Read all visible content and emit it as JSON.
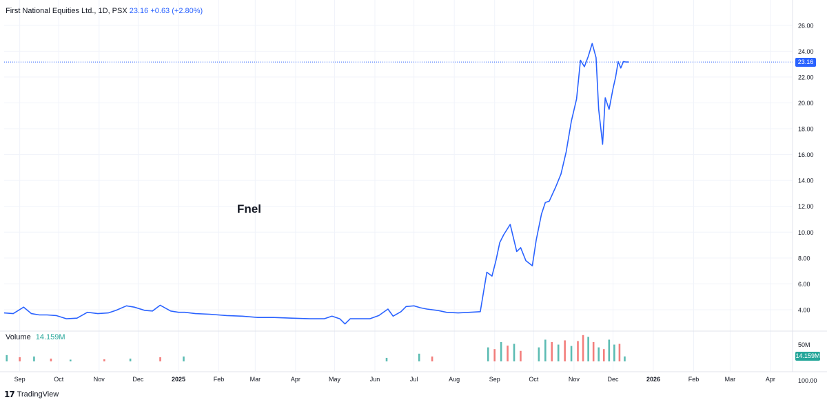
{
  "header": {
    "title": "First National Equities Ltd., 1D, PSX",
    "last": "23.16",
    "change": "+0.63 (+2.80%)"
  },
  "annotation": "Fnel",
  "volume_panel": {
    "label": "Volume",
    "value": "14.159M",
    "axis_ticks": [
      "50M",
      "100.00"
    ]
  },
  "branding": {
    "logo": "17",
    "name": "TradingView"
  },
  "colors": {
    "line": "#2962ff",
    "volume_up": "#26a69a",
    "volume_down": "#ef5350",
    "grid": "#f0f3fa",
    "text": "#131722"
  },
  "chart_data": {
    "type": "line",
    "symbol": "FNEL",
    "exchange": "PSX",
    "interval": "1D",
    "last_price": 23.16,
    "last_price_label": "23.16",
    "ylim": [
      2.4,
      27.0
    ],
    "y_ticks": [
      "4.00",
      "6.00",
      "8.00",
      "10.00",
      "12.00",
      "14.00",
      "16.00",
      "18.00",
      "20.00",
      "22.00",
      "24.00",
      "26.00"
    ],
    "x_ticks": [
      "Sep",
      "Oct",
      "Nov",
      "Dec",
      "2025",
      "Feb",
      "Mar",
      "Apr",
      "May",
      "Jun",
      "Jul",
      "Aug",
      "Sep",
      "Oct",
      "Nov",
      "Dec",
      "2026",
      "Feb",
      "Mar",
      "Apr"
    ],
    "x_tick_dates": [
      "2024-09-01",
      "2024-10-01",
      "2024-11-01",
      "2024-12-01",
      "2025-01-01",
      "2025-02-01",
      "2025-03-01",
      "2025-04-01",
      "2025-05-01",
      "2025-06-01",
      "2025-07-01",
      "2025-08-01",
      "2025-09-01",
      "2025-10-01",
      "2025-11-01",
      "2025-12-01",
      "2026-01-01",
      "2026-02-01",
      "2026-03-01",
      "2026-04-01"
    ],
    "x_range": [
      "2024-08-20",
      "2026-04-18"
    ],
    "grid": true,
    "series": [
      {
        "x": [
          "2024-08-20",
          "2024-08-27",
          "2024-09-04",
          "2024-09-10",
          "2024-09-16",
          "2024-09-22",
          "2024-09-29",
          "2024-10-07",
          "2024-10-15",
          "2024-10-23",
          "2024-10-31",
          "2024-11-08",
          "2024-11-14",
          "2024-11-22",
          "2024-11-28",
          "2024-12-06",
          "2024-12-12",
          "2024-12-18",
          "2024-12-26",
          "2025-01-01",
          "2025-01-06",
          "2025-01-14",
          "2025-01-25",
          "2025-02-07",
          "2025-02-19",
          "2025-03-03",
          "2025-03-15",
          "2025-03-29",
          "2025-04-12",
          "2025-04-23",
          "2025-04-29",
          "2025-05-05",
          "2025-05-09",
          "2025-05-13",
          "2025-05-20",
          "2025-05-28",
          "2025-06-04",
          "2025-06-11",
          "2025-06-15",
          "2025-06-21",
          "2025-06-25",
          "2025-07-01",
          "2025-07-06",
          "2025-07-11",
          "2025-07-19",
          "2025-07-26",
          "2025-08-04",
          "2025-08-13",
          "2025-08-21",
          "2025-08-26",
          "2025-08-30",
          "2025-09-02",
          "2025-09-05",
          "2025-09-08",
          "2025-09-13",
          "2025-09-18",
          "2025-09-21",
          "2025-09-25",
          "2025-09-30",
          "2025-10-03",
          "2025-10-07",
          "2025-10-10",
          "2025-10-13",
          "2025-10-18",
          "2025-10-22",
          "2025-10-26",
          "2025-10-30",
          "2025-11-03",
          "2025-11-06",
          "2025-11-09",
          "2025-11-12",
          "2025-11-15",
          "2025-11-18",
          "2025-11-20",
          "2025-11-23",
          "2025-11-25",
          "2025-11-28",
          "2025-12-01",
          "2025-12-03",
          "2025-12-05",
          "2025-12-07",
          "2025-12-09",
          "2025-12-11",
          "2025-12-13"
        ],
        "values": [
          3.75,
          3.7,
          4.2,
          3.7,
          3.6,
          3.6,
          3.55,
          3.3,
          3.35,
          3.8,
          3.7,
          3.75,
          3.95,
          4.3,
          4.2,
          3.95,
          3.9,
          4.35,
          3.9,
          3.8,
          3.8,
          3.7,
          3.65,
          3.55,
          3.5,
          3.4,
          3.4,
          3.35,
          3.3,
          3.3,
          3.5,
          3.3,
          2.9,
          3.3,
          3.3,
          3.3,
          3.55,
          4.05,
          3.5,
          3.85,
          4.25,
          4.3,
          4.15,
          4.05,
          3.95,
          3.8,
          3.75,
          3.8,
          3.85,
          6.9,
          6.6,
          7.8,
          9.2,
          9.8,
          10.6,
          8.5,
          8.8,
          7.8,
          7.4,
          9.4,
          11.4,
          12.3,
          12.4,
          13.5,
          14.5,
          16.2,
          18.6,
          20.3,
          23.3,
          22.8,
          23.6,
          24.6,
          23.5,
          19.5,
          16.8,
          20.4,
          19.5,
          21.1,
          22.0,
          23.2,
          22.7,
          23.2,
          23.16,
          23.16
        ]
      }
    ],
    "volume": {
      "unit": "shares",
      "x": [
        "2024-08-22",
        "2024-09-01",
        "2024-09-12",
        "2024-09-25",
        "2024-10-10",
        "2024-11-05",
        "2024-11-25",
        "2024-12-18",
        "2025-01-05",
        "2025-06-10",
        "2025-07-05",
        "2025-07-15",
        "2025-08-27",
        "2025-09-01",
        "2025-09-06",
        "2025-09-11",
        "2025-09-16",
        "2025-09-21",
        "2025-10-05",
        "2025-10-10",
        "2025-10-15",
        "2025-10-20",
        "2025-10-25",
        "2025-10-30",
        "2025-11-04",
        "2025-11-08",
        "2025-11-12",
        "2025-11-16",
        "2025-11-20",
        "2025-11-24",
        "2025-11-28",
        "2025-12-02",
        "2025-12-06",
        "2025-12-10"
      ],
      "values": [
        18,
        12,
        14,
        8,
        5,
        6,
        8,
        12,
        14,
        10,
        22,
        14,
        40,
        35,
        55,
        45,
        50,
        30,
        40,
        62,
        55,
        48,
        60,
        44,
        58,
        75,
        70,
        55,
        40,
        35,
        62,
        48,
        50,
        14.159
      ],
      "direction": [
        "up",
        "down",
        "up",
        "down",
        "up",
        "down",
        "up",
        "down",
        "up",
        "up",
        "up",
        "down",
        "up",
        "down",
        "up",
        "down",
        "up",
        "down",
        "up",
        "up",
        "down",
        "up",
        "down",
        "up",
        "down",
        "down",
        "up",
        "down",
        "up",
        "down",
        "up",
        "up",
        "down",
        "up"
      ],
      "ylim": [
        0,
        110
      ]
    }
  }
}
